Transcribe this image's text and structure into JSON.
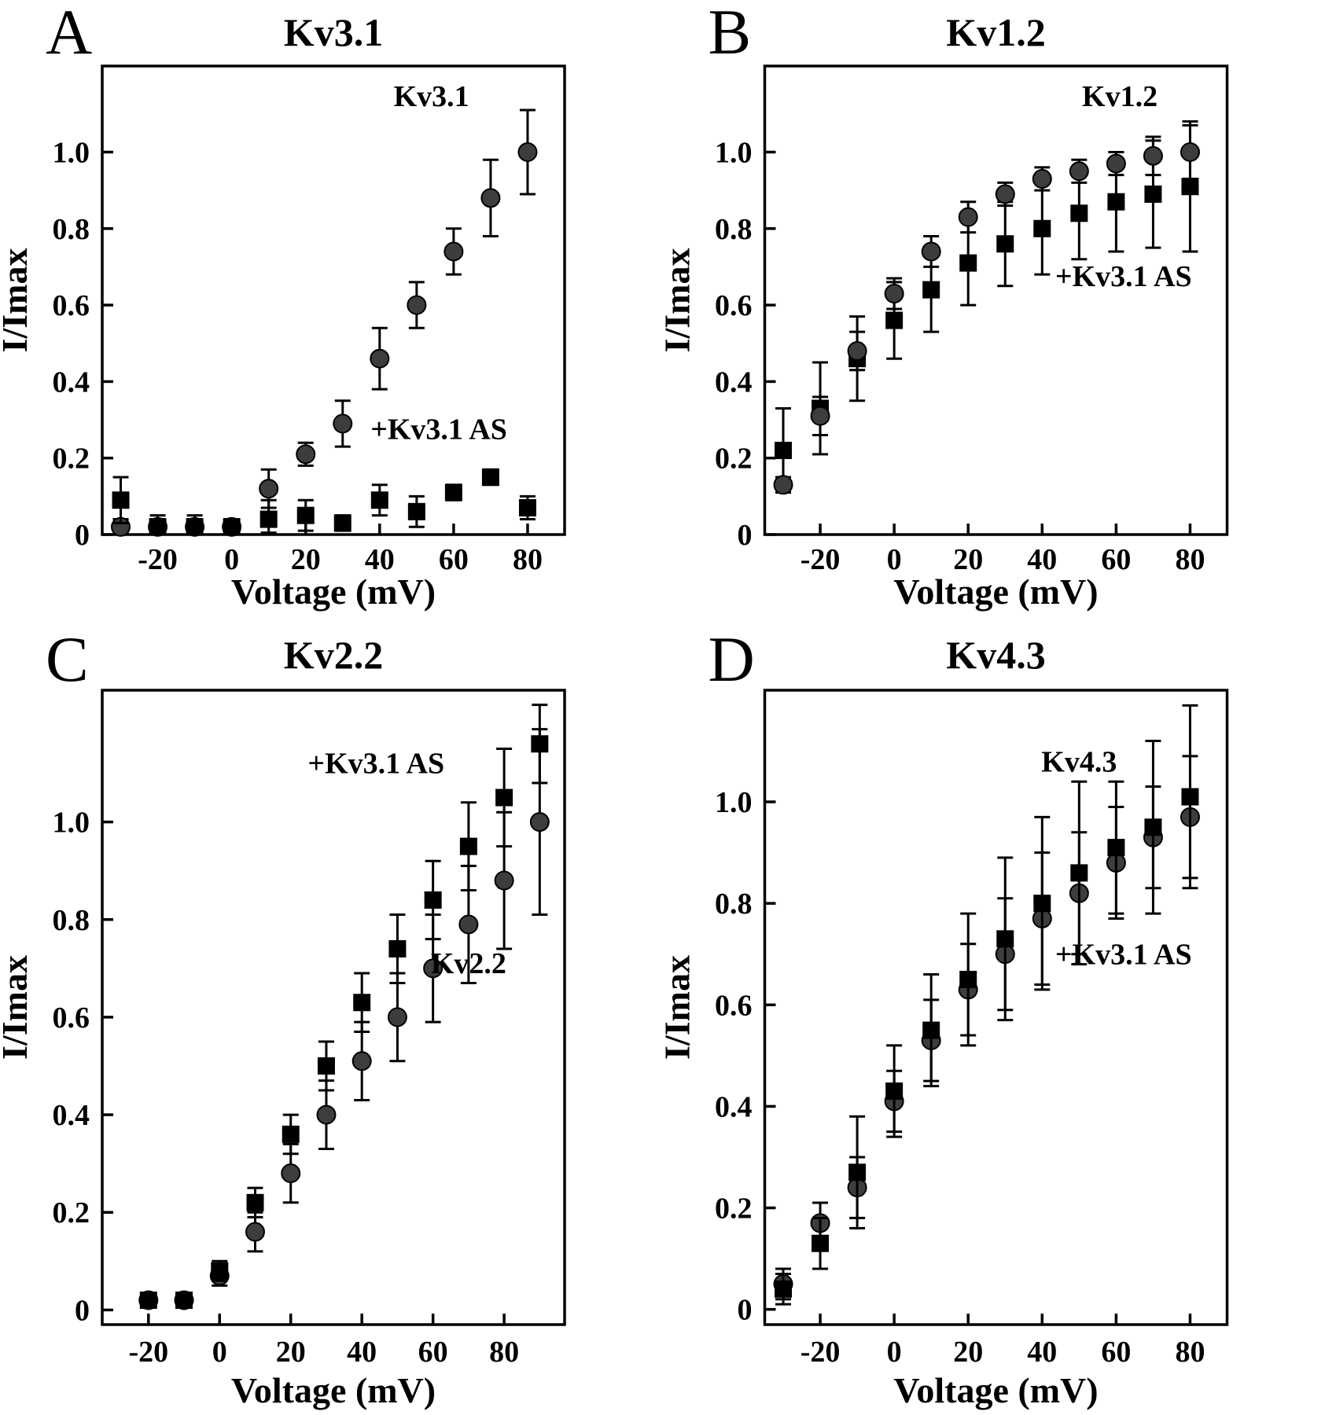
{
  "figure": {
    "background": "#ffffff",
    "ink": "#000000",
    "circle_fill": "#3d3d3d",
    "square_fill": "#000000"
  },
  "chart_data": [
    {
      "id": "A",
      "type": "scatter",
      "letter": "A",
      "title": "Kv3.1",
      "xlabel": "Voltage (mV)",
      "ylabel": "I/Imax",
      "row": "top",
      "xlim": [
        -35,
        90
      ],
      "ylim": [
        0,
        1.225
      ],
      "xticks": [
        -20,
        0,
        20,
        40,
        60,
        80
      ],
      "xtick_labels": [
        "-20",
        "0",
        "20",
        "40",
        "60",
        "80"
      ],
      "yticks": [
        0,
        0.2,
        0.4,
        0.6,
        0.8,
        1.0
      ],
      "ytick_labels": [
        "0",
        "0.2",
        "0.4",
        "0.6",
        "0.8",
        "1.0"
      ],
      "grid": false,
      "series": [
        {
          "name": "Kv3.1",
          "marker": "circle",
          "fill": "#3d3d3d",
          "x": [
            -30,
            -20,
            -10,
            0,
            10,
            20,
            30,
            40,
            50,
            60,
            70,
            80
          ],
          "y": [
            0.02,
            0.02,
            0.02,
            0.02,
            0.12,
            0.21,
            0.29,
            0.46,
            0.6,
            0.74,
            0.88,
            1.0
          ],
          "yerr": [
            0.02,
            0.02,
            0.02,
            0.01,
            0.05,
            0.03,
            0.06,
            0.08,
            0.06,
            0.06,
            0.1,
            0.11
          ]
        },
        {
          "name": "+Kv3.1 AS",
          "marker": "square",
          "fill": "#000000",
          "x": [
            -30,
            -20,
            -10,
            0,
            10,
            20,
            30,
            40,
            50,
            60,
            70,
            80
          ],
          "y": [
            0.09,
            0.02,
            0.02,
            0.02,
            0.04,
            0.05,
            0.03,
            0.09,
            0.06,
            0.11,
            0.15,
            0.07
          ],
          "yerr": [
            0.06,
            0.03,
            0.03,
            0.02,
            0.05,
            0.04,
            0.02,
            0.04,
            0.04,
            0.02,
            0.02,
            0.03
          ]
        }
      ],
      "annotations": [
        {
          "text": "Kv3.1",
          "x": 54,
          "y": 1.12,
          "anchor": "middle"
        },
        {
          "text": "+Kv3.1 AS",
          "x": 56,
          "y": 0.25,
          "anchor": "middle"
        }
      ]
    },
    {
      "id": "B",
      "type": "scatter",
      "letter": "B",
      "title": "Kv1.2",
      "xlabel": "Voltage (mV)",
      "ylabel": "I/Imax",
      "row": "top",
      "xlim": [
        -35,
        90
      ],
      "ylim": [
        0,
        1.225
      ],
      "xticks": [
        -20,
        0,
        20,
        40,
        60,
        80
      ],
      "xtick_labels": [
        "-20",
        "0",
        "20",
        "40",
        "60",
        "80"
      ],
      "yticks": [
        0,
        0.2,
        0.4,
        0.6,
        0.8,
        1.0
      ],
      "ytick_labels": [
        "0",
        "0.2",
        "0.4",
        "0.6",
        "0.8",
        "1.0"
      ],
      "grid": false,
      "series": [
        {
          "name": "+Kv3.1 AS",
          "marker": "square",
          "fill": "#000000",
          "x": [
            -30,
            -20,
            -10,
            0,
            10,
            20,
            30,
            40,
            50,
            60,
            70,
            80
          ],
          "y": [
            0.22,
            0.33,
            0.46,
            0.56,
            0.64,
            0.71,
            0.76,
            0.8,
            0.84,
            0.87,
            0.89,
            0.91
          ],
          "yerr": [
            0.11,
            0.12,
            0.11,
            0.1,
            0.11,
            0.11,
            0.11,
            0.12,
            0.12,
            0.13,
            0.14,
            0.17
          ]
        },
        {
          "name": "Kv1.2",
          "marker": "circle",
          "fill": "#3d3d3d",
          "x": [
            -30,
            -20,
            -10,
            0,
            10,
            20,
            30,
            40,
            50,
            60,
            70,
            80
          ],
          "y": [
            0.13,
            0.31,
            0.48,
            0.63,
            0.74,
            0.83,
            0.89,
            0.93,
            0.95,
            0.97,
            0.99,
            1.0
          ],
          "yerr": [
            0.02,
            0.05,
            0.05,
            0.04,
            0.04,
            0.04,
            0.03,
            0.03,
            0.03,
            0.03,
            0.05,
            0.07
          ]
        }
      ],
      "annotations": [
        {
          "text": "Kv1.2",
          "x": 61,
          "y": 1.12,
          "anchor": "middle"
        },
        {
          "text": "+Kv3.1 AS",
          "x": 62,
          "y": 0.65,
          "anchor": "middle"
        }
      ]
    },
    {
      "id": "C",
      "type": "scatter",
      "letter": "C",
      "title": "Kv2.2",
      "xlabel": "Voltage (mV)",
      "ylabel": "I/Imax",
      "row": "bottom",
      "xlim": [
        -33,
        97
      ],
      "ylim": [
        -0.03,
        1.27
      ],
      "xticks": [
        -20,
        0,
        20,
        40,
        60,
        80
      ],
      "xtick_labels": [
        "-20",
        "0",
        "20",
        "40",
        "60",
        "80"
      ],
      "yticks": [
        0,
        0.2,
        0.4,
        0.6,
        0.8,
        1.0
      ],
      "ytick_labels": [
        "0",
        "0.2",
        "0.4",
        "0.6",
        "0.8",
        "1.0"
      ],
      "grid": false,
      "series": [
        {
          "name": "Kv2.2",
          "marker": "circle",
          "fill": "#3d3d3d",
          "x": [
            -20,
            -10,
            0,
            10,
            20,
            30,
            40,
            50,
            60,
            70,
            80,
            90
          ],
          "y": [
            0.02,
            0.02,
            0.07,
            0.16,
            0.28,
            0.4,
            0.51,
            0.6,
            0.7,
            0.79,
            0.88,
            1.0
          ],
          "yerr": [
            0.01,
            0.01,
            0.02,
            0.04,
            0.06,
            0.07,
            0.08,
            0.09,
            0.11,
            0.12,
            0.14,
            0.19
          ]
        },
        {
          "name": "+Kv3.1 AS",
          "marker": "square",
          "fill": "#000000",
          "x": [
            -20,
            -10,
            0,
            10,
            20,
            30,
            40,
            50,
            60,
            70,
            80,
            90
          ],
          "y": [
            0.02,
            0.02,
            0.08,
            0.22,
            0.36,
            0.5,
            0.63,
            0.74,
            0.84,
            0.95,
            1.05,
            1.16
          ],
          "yerr": [
            0.01,
            0.01,
            0.02,
            0.03,
            0.04,
            0.05,
            0.06,
            0.07,
            0.08,
            0.09,
            0.1,
            0.08
          ]
        }
      ],
      "annotations": [
        {
          "text": "+Kv3.1 AS",
          "x": 44,
          "y": 1.1,
          "anchor": "middle"
        },
        {
          "text": "Kv2.2",
          "x": 70,
          "y": 0.69,
          "anchor": "middle"
        }
      ]
    },
    {
      "id": "D",
      "type": "scatter",
      "letter": "D",
      "title": "Kv4.3",
      "xlabel": "Voltage (mV)",
      "ylabel": "I/Imax",
      "row": "bottom",
      "xlim": [
        -35,
        90
      ],
      "ylim": [
        -0.03,
        1.22
      ],
      "xticks": [
        -20,
        0,
        20,
        40,
        60,
        80
      ],
      "xtick_labels": [
        "-20",
        "0",
        "20",
        "40",
        "60",
        "80"
      ],
      "yticks": [
        0,
        0.2,
        0.4,
        0.6,
        0.8,
        1.0
      ],
      "ytick_labels": [
        "0",
        "0.2",
        "0.4",
        "0.6",
        "0.8",
        "1.0"
      ],
      "grid": false,
      "series": [
        {
          "name": "Kv4.3",
          "marker": "circle",
          "fill": "#3d3d3d",
          "x": [
            -30,
            -20,
            -10,
            0,
            10,
            20,
            30,
            40,
            50,
            60,
            70,
            80
          ],
          "y": [
            0.05,
            0.17,
            0.24,
            0.41,
            0.53,
            0.63,
            0.7,
            0.77,
            0.82,
            0.88,
            0.93,
            0.97
          ],
          "yerr": [
            0.03,
            0.04,
            0.06,
            0.06,
            0.08,
            0.09,
            0.11,
            0.13,
            0.12,
            0.11,
            0.1,
            0.12
          ]
        },
        {
          "name": "+Kv3.1 AS",
          "marker": "square",
          "fill": "#000000",
          "x": [
            -30,
            -20,
            -10,
            0,
            10,
            20,
            30,
            40,
            50,
            60,
            70,
            80
          ],
          "y": [
            0.04,
            0.13,
            0.27,
            0.43,
            0.55,
            0.65,
            0.73,
            0.8,
            0.86,
            0.91,
            0.95,
            1.01
          ],
          "yerr": [
            0.03,
            0.05,
            0.11,
            0.09,
            0.11,
            0.13,
            0.16,
            0.17,
            0.18,
            0.13,
            0.17,
            0.18
          ]
        }
      ],
      "annotations": [
        {
          "text": "Kv4.3",
          "x": 50,
          "y": 1.06,
          "anchor": "middle"
        },
        {
          "text": "+Kv3.1 AS",
          "x": 62,
          "y": 0.68,
          "anchor": "middle"
        }
      ]
    }
  ]
}
